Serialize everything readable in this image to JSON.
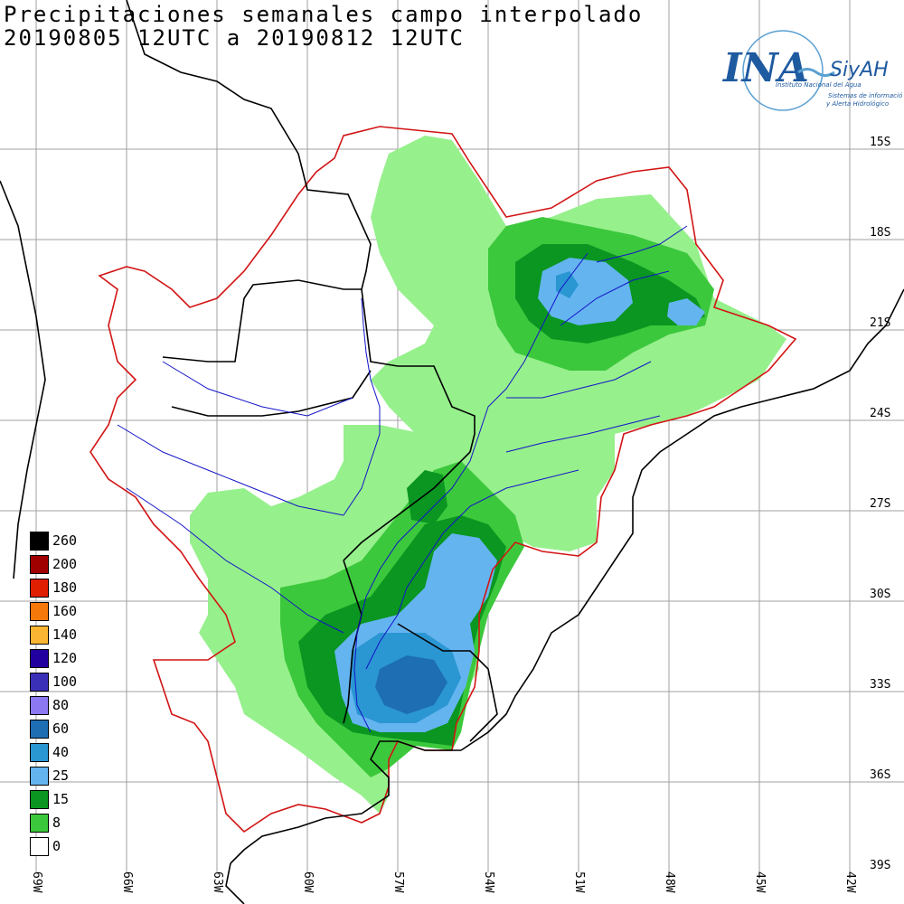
{
  "title": {
    "line1": "Precipitaciones semanales campo interpolado",
    "line2": "20190805 12UTC a 20190812 12UTC"
  },
  "logo": {
    "name": "INA",
    "brand": "SiyAH",
    "line1": "Instituto Nacional del Agua",
    "line2": "Sistemas de información",
    "line3": "y Alerta Hidrológico"
  },
  "legend": [
    {
      "label": "260",
      "color": "#000000"
    },
    {
      "label": "200",
      "color": "#a00000"
    },
    {
      "label": "180",
      "color": "#e01e00"
    },
    {
      "label": "160",
      "color": "#f5780a"
    },
    {
      "label": "140",
      "color": "#fab632"
    },
    {
      "label": "120",
      "color": "#2200a0"
    },
    {
      "label": "100",
      "color": "#3a30b8"
    },
    {
      "label": "80",
      "color": "#8c78f0"
    },
    {
      "label": "60",
      "color": "#1e6eb4"
    },
    {
      "label": "40",
      "color": "#2a96d2"
    },
    {
      "label": "25",
      "color": "#64b4f0"
    },
    {
      "label": "15",
      "color": "#0a9620"
    },
    {
      "label": "8",
      "color": "#3cc83c"
    },
    {
      "label": "0",
      "color": "#ffffff"
    }
  ],
  "lat_labels": [
    "15S",
    "18S",
    "21S",
    "24S",
    "27S",
    "30S",
    "33S",
    "36S",
    "39S"
  ],
  "lon_labels": [
    "69W",
    "66W",
    "63W",
    "60W",
    "57W",
    "54W",
    "51W",
    "48W",
    "45W",
    "42W"
  ],
  "colors": {
    "light_green": "#96f08c",
    "green": "#3cc83c",
    "dark_green": "#0a9620",
    "light_blue": "#64b4f0",
    "blue": "#2a96d2",
    "dark_blue": "#1e6eb4",
    "basin_outline": "#d21414",
    "rivers": "#1414c8",
    "borders": "#000000"
  }
}
